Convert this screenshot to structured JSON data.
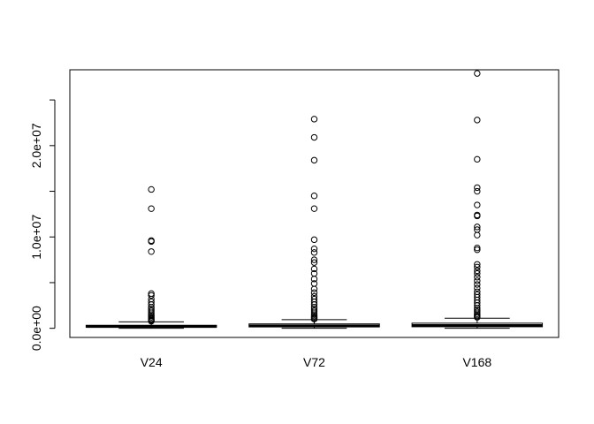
{
  "chart_data": {
    "type": "box",
    "title": "",
    "xlabel": "",
    "ylabel": "",
    "categories": [
      "V24",
      "V72",
      "V168"
    ],
    "ylim": [
      -1000000,
      28300000
    ],
    "y_ticks": [
      0,
      5000000,
      10000000,
      15000000,
      20000000,
      25000000
    ],
    "y_tick_labels": [
      "0.0e+00",
      "",
      "1.0e+07",
      "",
      "2.0e+07",
      ""
    ],
    "grid": false,
    "legend": "none",
    "boxes": [
      {
        "name": "V24",
        "min": 0,
        "q1": 120000,
        "median": 200000,
        "q3": 330000,
        "max": 700000,
        "outliers": [
          15200000,
          13100000,
          9600000,
          9500000,
          8400000,
          3800000,
          3600000,
          3200000,
          2900000,
          2600000,
          2300000,
          2100000,
          1900000,
          1700000,
          1500000,
          1350000,
          1200000,
          1050000,
          950000,
          850000,
          780000
        ]
      },
      {
        "name": "V72",
        "min": 0,
        "q1": 150000,
        "median": 260000,
        "q3": 480000,
        "max": 950000,
        "outliers": [
          22900000,
          20900000,
          18400000,
          14500000,
          13100000,
          9700000,
          8700000,
          8300000,
          7500000,
          7200000,
          6500000,
          6000000,
          5400000,
          4900000,
          4300000,
          3900000,
          3500000,
          3200000,
          2900000,
          2600000,
          2300000,
          2100000,
          1900000,
          1700000,
          1500000,
          1350000,
          1200000,
          1100000,
          1000000
        ]
      },
      {
        "name": "V168",
        "min": 0,
        "q1": 170000,
        "median": 300000,
        "q3": 560000,
        "max": 1100000,
        "outliers": [
          27900000,
          22800000,
          18500000,
          15400000,
          15000000,
          13500000,
          12400000,
          12300000,
          11100000,
          10800000,
          10200000,
          8800000,
          8600000,
          7000000,
          6700000,
          6300000,
          6000000,
          5600000,
          5200000,
          4800000,
          4400000,
          4000000,
          3700000,
          3400000,
          3100000,
          2800000,
          2500000,
          2200000,
          2000000,
          1800000,
          1600000,
          1450000,
          1300000,
          1200000
        ]
      }
    ]
  }
}
